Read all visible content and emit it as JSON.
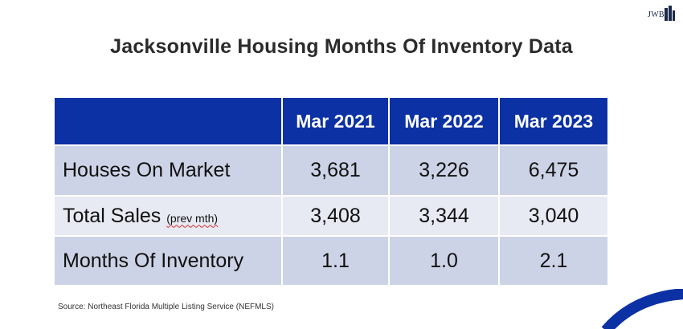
{
  "logo": {
    "text": "JWB"
  },
  "title": "Jacksonville Housing Months Of Inventory Data",
  "table": {
    "headers": [
      "",
      "Mar 2021",
      "Mar 2022",
      "Mar 2023"
    ],
    "rows": [
      {
        "label": "Houses On Market",
        "label_note": "",
        "values": [
          "3,681",
          "3,226",
          "6,475"
        ]
      },
      {
        "label": "Total Sales",
        "label_note": "(prev mth)",
        "values": [
          "3,408",
          "3,344",
          "3,040"
        ]
      },
      {
        "label": "Months Of Inventory",
        "label_note": "",
        "values": [
          "1.1",
          "1.0",
          "2.1"
        ]
      }
    ]
  },
  "source": "Source: Northeast Florida Multiple Listing Service (NEFMLS)",
  "colors": {
    "header_bg": "#0b31a4",
    "row_dark": "#cdd3e6",
    "row_light": "#e8eaf3",
    "accent_arc": "#0b31a4"
  }
}
